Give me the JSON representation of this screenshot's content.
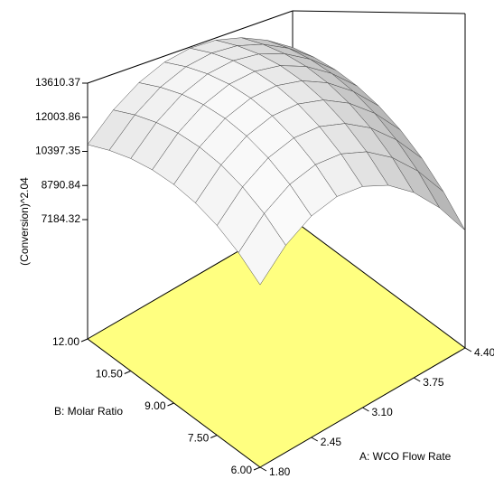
{
  "chart_data": {
    "type": "surface",
    "z_label": "(Conversion)^2.04",
    "x_label": "A: WCO Flow Rate",
    "y_label": "B: Molar Ratio",
    "xlim": [
      1.8,
      4.4
    ],
    "xticks": [
      {
        "value": 1.8,
        "label": "1.80"
      },
      {
        "value": 2.45,
        "label": "2.45"
      },
      {
        "value": 3.1,
        "label": "3.10"
      },
      {
        "value": 3.75,
        "label": "3.75"
      },
      {
        "value": 4.4,
        "label": "4.40"
      }
    ],
    "ylim": [
      6,
      12
    ],
    "yticks": [
      {
        "value": 6,
        "label": "6.00"
      },
      {
        "value": 7.5,
        "label": "7.50"
      },
      {
        "value": 9,
        "label": "9.00"
      },
      {
        "value": 10.5,
        "label": "10.50"
      },
      {
        "value": 12,
        "label": "12.00"
      }
    ],
    "zlim": [
      1566,
      13610.37
    ],
    "zticks": [
      7184.32,
      8790.84,
      10397.35,
      12003.86,
      13610.37
    ],
    "x": [
      1.8,
      2.125,
      2.45,
      2.775,
      3.1,
      3.425,
      3.75,
      4.075,
      4.4
    ],
    "y": [
      6,
      6.75,
      7.5,
      8.25,
      9,
      9.75,
      10.5,
      11.25,
      12
    ],
    "z": [
      [
        7300,
        8180,
        8755,
        9025,
        8990,
        8650,
        8005,
        7055,
        5800
      ],
      [
        8077,
        8993,
        9603,
        9909,
        9910,
        9605,
        8996,
        8082,
        6863
      ],
      [
        8754,
        9705,
        10352,
        10693,
        10730,
        10461,
        9887,
        9009,
        7825
      ],
      [
        9331,
        10318,
        11000,
        11377,
        11449,
        11216,
        10678,
        9835,
        8688
      ],
      [
        9808,
        10831,
        11549,
        11961,
        12069,
        11872,
        11370,
        10562,
        9450
      ],
      [
        10185,
        11243,
        11997,
        12445,
        12589,
        12427,
        11961,
        11189,
        10113
      ],
      [
        10462,
        11556,
        12345,
        12829,
        13009,
        12883,
        12452,
        11716,
        10675
      ],
      [
        10639,
        11769,
        12594,
        13113,
        13328,
        13238,
        12843,
        12143,
        11138
      ],
      [
        10716,
        11882,
        12742,
        13298,
        13548,
        13494,
        13134,
        12470,
        11500
      ]
    ],
    "floor_color": "#ffff80",
    "surface_color": "#d0d0d0"
  }
}
